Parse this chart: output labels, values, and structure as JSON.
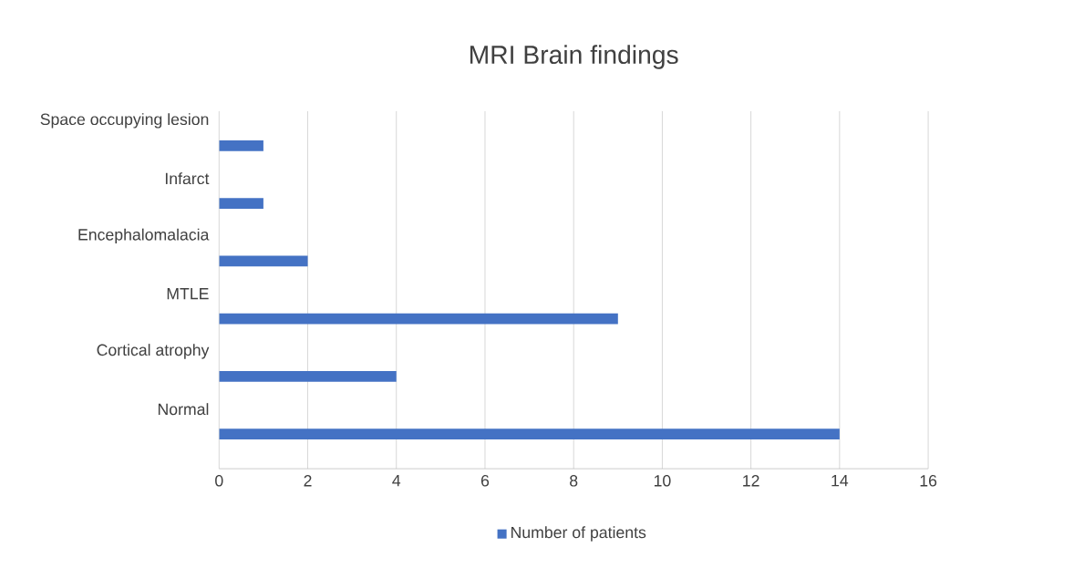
{
  "chart_data": {
    "type": "bar",
    "orientation": "horizontal",
    "title": "MRI Brain findings",
    "categories": [
      "Space occupying lesion",
      "Infarct",
      "Encephalomalacia",
      "MTLE",
      "Cortical atrophy",
      "Normal"
    ],
    "series": [
      {
        "name": "Number of patients",
        "color": "#4472c4",
        "values": [
          1,
          1,
          2,
          9,
          4,
          14
        ]
      }
    ],
    "xlim": [
      0,
      16
    ],
    "xticks": [
      0,
      2,
      4,
      6,
      8,
      10,
      12,
      14,
      16
    ],
    "grid": "x",
    "legend": "bottom"
  }
}
